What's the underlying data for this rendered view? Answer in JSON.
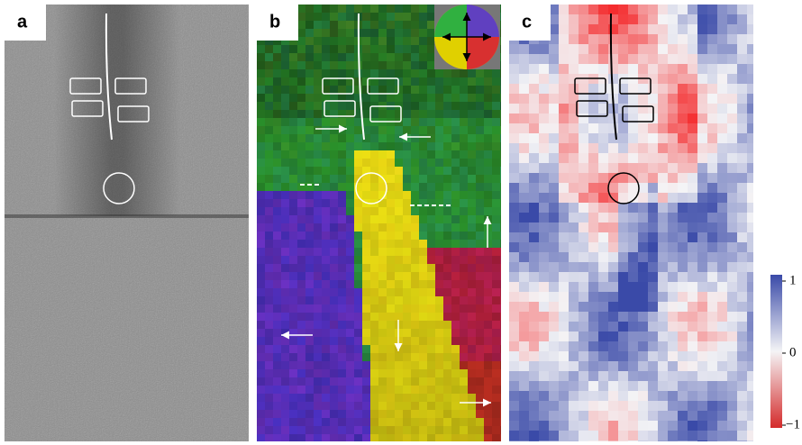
{
  "panels": [
    {
      "label": "a"
    },
    {
      "label": "b"
    },
    {
      "label": "c"
    }
  ],
  "colorbar": {
    "range": [
      -1,
      1
    ],
    "ticks": [
      1,
      0,
      {
        "value": -1,
        "label": "−1"
      }
    ]
  }
}
